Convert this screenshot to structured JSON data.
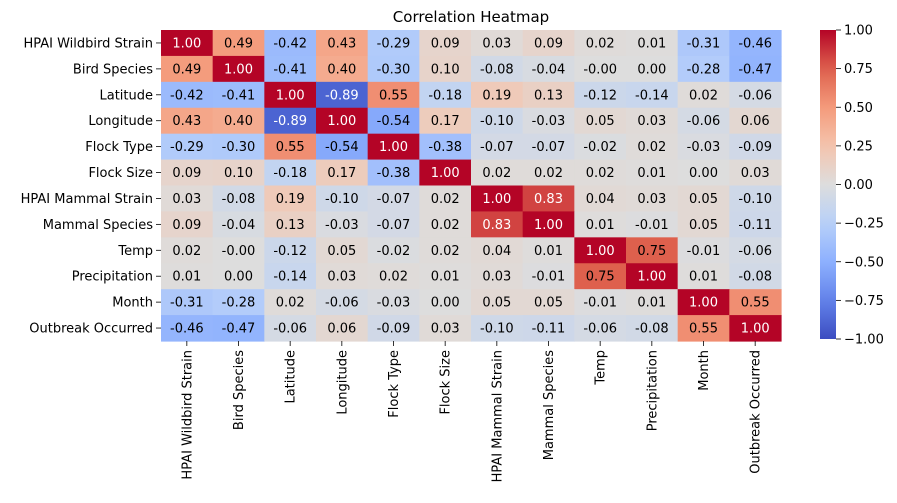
{
  "chart_data": {
    "type": "heatmap",
    "title": "Correlation Heatmap",
    "colormap": "coolwarm",
    "vmin": -1.0,
    "vmax": 1.0,
    "labels": [
      "HPAI Wildbird Strain",
      "Bird Species",
      "Latitude",
      "Longitude",
      "Flock Type",
      "Flock Size",
      "HPAI Mammal Strain",
      "Mammal Species",
      "Temp",
      "Precipitation",
      "Month",
      "Outbreak Occurred"
    ],
    "values": [
      [
        1.0,
        0.49,
        -0.42,
        0.43,
        -0.29,
        0.09,
        0.03,
        0.09,
        0.02,
        0.01,
        -0.31,
        -0.46
      ],
      [
        0.49,
        1.0,
        -0.41,
        0.4,
        -0.3,
        0.1,
        -0.08,
        -0.04,
        -0.0,
        0.0,
        -0.28,
        -0.47
      ],
      [
        -0.42,
        -0.41,
        1.0,
        -0.89,
        0.55,
        -0.18,
        0.19,
        0.13,
        -0.12,
        -0.14,
        0.02,
        -0.06
      ],
      [
        0.43,
        0.4,
        -0.89,
        1.0,
        -0.54,
        0.17,
        -0.1,
        -0.03,
        0.05,
        0.03,
        -0.06,
        0.06
      ],
      [
        -0.29,
        -0.3,
        0.55,
        -0.54,
        1.0,
        -0.38,
        -0.07,
        -0.07,
        -0.02,
        0.02,
        -0.03,
        -0.09
      ],
      [
        0.09,
        0.1,
        -0.18,
        0.17,
        -0.38,
        1.0,
        0.02,
        0.02,
        0.02,
        0.01,
        0.0,
        0.03
      ],
      [
        0.03,
        -0.08,
        0.19,
        -0.1,
        -0.07,
        0.02,
        1.0,
        0.83,
        0.04,
        0.03,
        0.05,
        -0.1
      ],
      [
        0.09,
        -0.04,
        0.13,
        -0.03,
        -0.07,
        0.02,
        0.83,
        1.0,
        0.01,
        -0.01,
        0.05,
        -0.11
      ],
      [
        0.02,
        -0.0,
        -0.12,
        0.05,
        -0.02,
        0.02,
        0.04,
        0.01,
        1.0,
        0.75,
        -0.01,
        -0.06
      ],
      [
        0.01,
        0.0,
        -0.14,
        0.03,
        0.02,
        0.01,
        0.03,
        -0.01,
        0.75,
        1.0,
        0.01,
        -0.08
      ],
      [
        -0.31,
        -0.28,
        0.02,
        -0.06,
        -0.03,
        0.0,
        0.05,
        0.05,
        -0.01,
        0.01,
        1.0,
        0.55
      ],
      [
        -0.46,
        -0.47,
        -0.06,
        0.06,
        -0.09,
        0.03,
        -0.1,
        -0.11,
        -0.06,
        -0.08,
        0.55,
        1.0
      ]
    ],
    "colorbar_ticks": [
      1.0,
      0.75,
      0.5,
      0.25,
      0.0,
      -0.25,
      -0.5,
      -0.75,
      -1.0
    ],
    "colorbar_tick_labels": [
      "1.00",
      "0.75",
      "0.50",
      "0.25",
      "0.00",
      "−0.25",
      "−0.50",
      "−0.75",
      "−1.00"
    ]
  }
}
